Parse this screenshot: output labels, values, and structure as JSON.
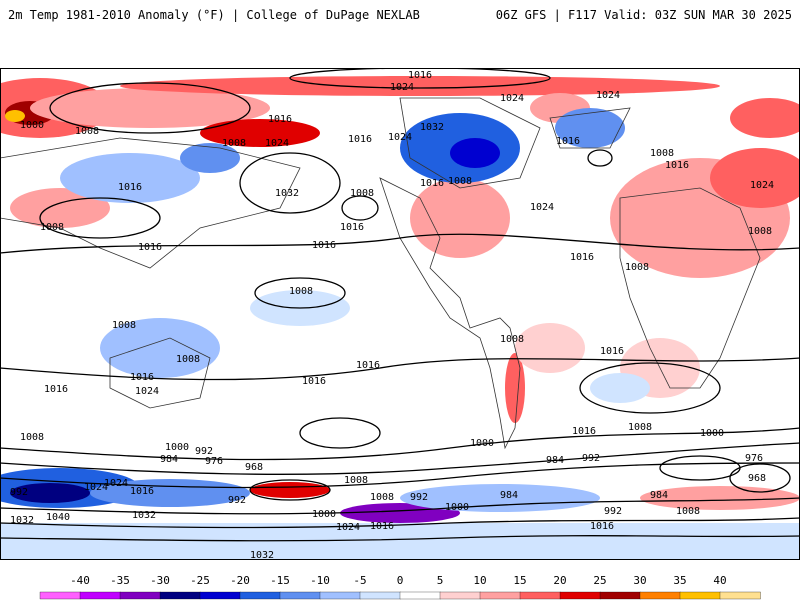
{
  "header": {
    "title": "2m Temp 1981-2010 Anomaly (°F) | College of DuPage NEXLAB",
    "run_info": "06Z GFS | F117 Valid: 03Z SUN MAR 30 2025"
  },
  "map": {
    "projection": "global equirectangular",
    "isobar_labels": [
      "1016",
      "1024",
      "1024",
      "1024",
      "1008",
      "1000",
      "1008",
      "1016",
      "1024",
      "1032",
      "1016",
      "1024",
      "1016",
      "1008",
      "1008",
      "1016",
      "1016",
      "1032",
      "1008",
      "1016",
      "1016",
      "1008",
      "1016",
      "1024",
      "1016",
      "1008",
      "1016",
      "1008",
      "1008",
      "1016",
      "1024",
      "1008",
      "1016",
      "1016",
      "1016",
      "1016",
      "1008",
      "1008",
      "1016",
      "1024",
      "1008",
      "1000",
      "992",
      "984",
      "976",
      "968",
      "1000",
      "1008",
      "1000",
      "992",
      "984",
      "976",
      "968",
      "1016",
      "1024",
      "1032",
      "1040",
      "992",
      "1032",
      "1016",
      "1024",
      "1000",
      "1008",
      "992",
      "984",
      "992",
      "1000",
      "1016",
      "1008",
      "1024",
      "1032",
      "992",
      "984",
      "1008"
    ]
  },
  "legend": {
    "ticks": [
      "-40",
      "-35",
      "-30",
      "-25",
      "-20",
      "-15",
      "-10",
      "-5",
      "0",
      "5",
      "10",
      "15",
      "20",
      "25",
      "30",
      "35",
      "40"
    ],
    "colors": [
      "#ff60ff",
      "#c000ff",
      "#8000c0",
      "#000080",
      "#0000d0",
      "#2060e0",
      "#6090f0",
      "#a0c0ff",
      "#d0e4ff",
      "#ffffff",
      "#ffd0d0",
      "#ffa0a0",
      "#ff6060",
      "#e00000",
      "#a00000",
      "#ff8000",
      "#ffc000",
      "#ffe090"
    ]
  }
}
